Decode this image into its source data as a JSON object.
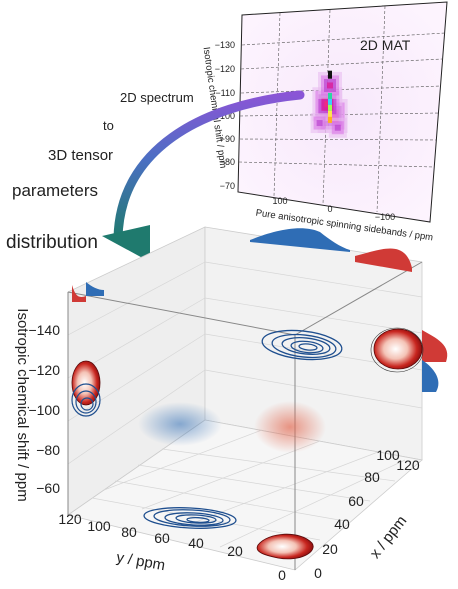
{
  "chart_data": [
    {
      "type": "heatmap",
      "title": "2D MAT",
      "xlabel": "Pure anisotropic spinning sidebands / ppm",
      "ylabel": "Isotropic chemical shift / ppm",
      "xticks": [
        "100",
        "0",
        "−100"
      ],
      "yticks": [
        "−130",
        "−120",
        "−110",
        "−100",
        "−90",
        "−80",
        "−70"
      ],
      "xlim": [
        150,
        -150
      ],
      "ylim": [
        -65,
        -140
      ],
      "grid": true,
      "peaks": [
        {
          "x": -5,
          "y": -100,
          "intensity": 1.0
        },
        {
          "x": 5,
          "y": -105,
          "intensity": 0.9
        },
        {
          "x": 0,
          "y": -113,
          "intensity": 0.8
        },
        {
          "x": -15,
          "y": -95,
          "intensity": 0.6
        },
        {
          "x": 20,
          "y": -97,
          "intensity": 0.5
        }
      ]
    },
    {
      "type": "scatter",
      "subtype": "3d-tensor-distribution",
      "zlabel": "Isotropic  chemical shift / ppm",
      "ylabel": "y / ppm",
      "xlabel": "x / ppm",
      "zticks": [
        "−140",
        "−120",
        "−100",
        "−80",
        "−60"
      ],
      "yticks": [
        "120",
        "100",
        "80",
        "60",
        "40",
        "20",
        "0"
      ],
      "xticks": [
        "0",
        "20",
        "40",
        "60",
        "80",
        "100",
        "120"
      ],
      "zlim": [
        -55,
        -150
      ],
      "ylim": [
        120,
        0
      ],
      "xlim": [
        0,
        120
      ],
      "series": [
        {
          "color": "#2f6db5",
          "center": {
            "x": 90,
            "y": 75,
            "iso": -130
          }
        },
        {
          "color": "#d03a36",
          "center": {
            "x": 10,
            "y": 5,
            "iso": -125
          }
        }
      ]
    }
  ],
  "annotation": {
    "line1": "2D spectrum",
    "line2": "to",
    "line3": "3D tensor",
    "line4": "parameters",
    "line5": "distribution"
  },
  "colors": {
    "blue": "#2f6db5",
    "red": "#d03a36",
    "arrow_start": "#8a55d6",
    "arrow_end": "#1f7a6e"
  }
}
